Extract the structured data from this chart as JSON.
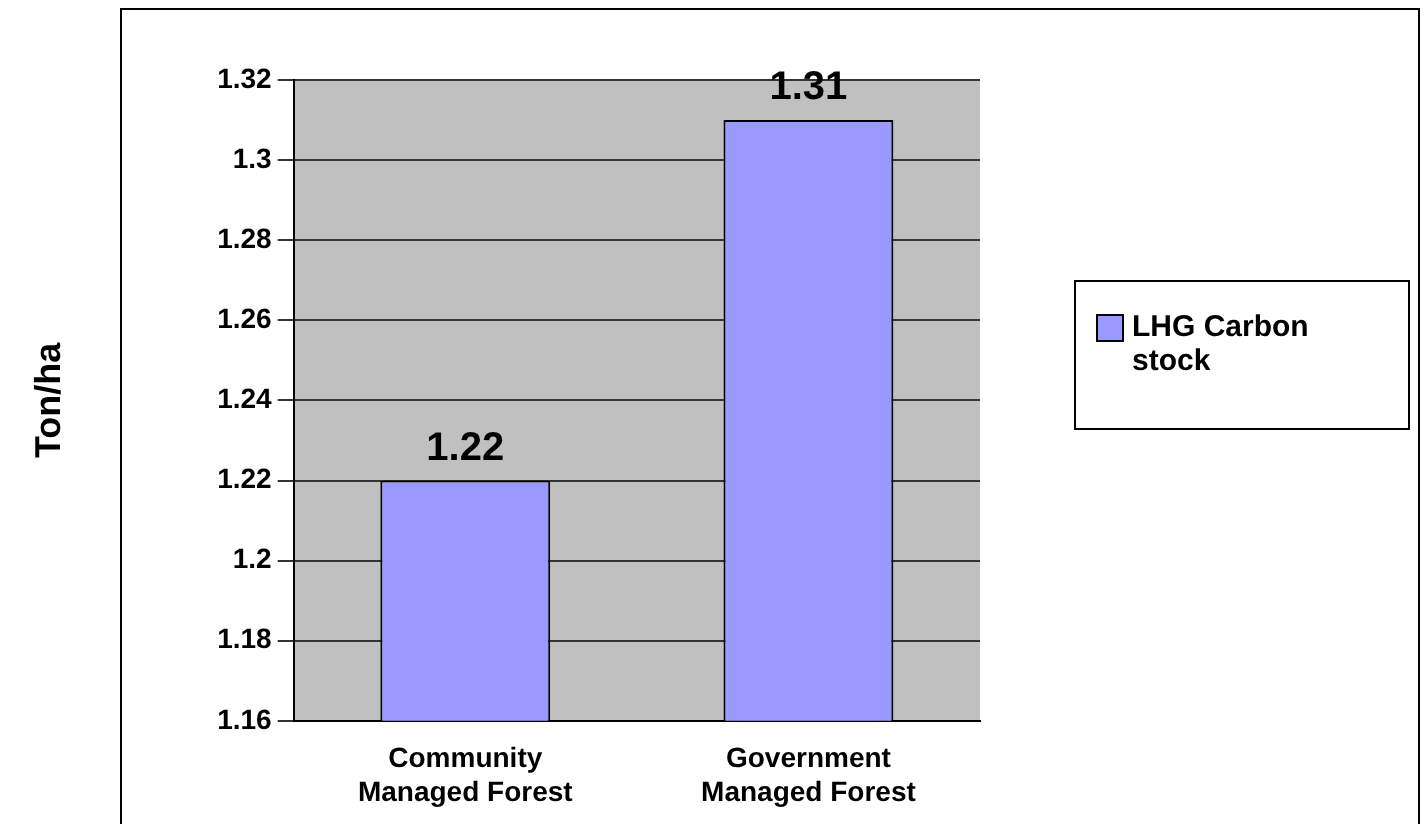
{
  "chart_data": {
    "type": "bar",
    "ylabel": "Ton/ha",
    "categories": [
      "Community Managed Forest",
      "Government Managed Forest"
    ],
    "series": [
      {
        "name": "LHG Carbon stock",
        "color": "#9999ff",
        "values": [
          1.22,
          1.31
        ]
      }
    ],
    "ylim": [
      1.16,
      1.32
    ],
    "yticks": [
      1.16,
      1.18,
      1.2,
      1.22,
      1.24,
      1.26,
      1.28,
      1.3,
      1.32
    ],
    "grid": "y",
    "legend": "right",
    "data_labels": true
  }
}
